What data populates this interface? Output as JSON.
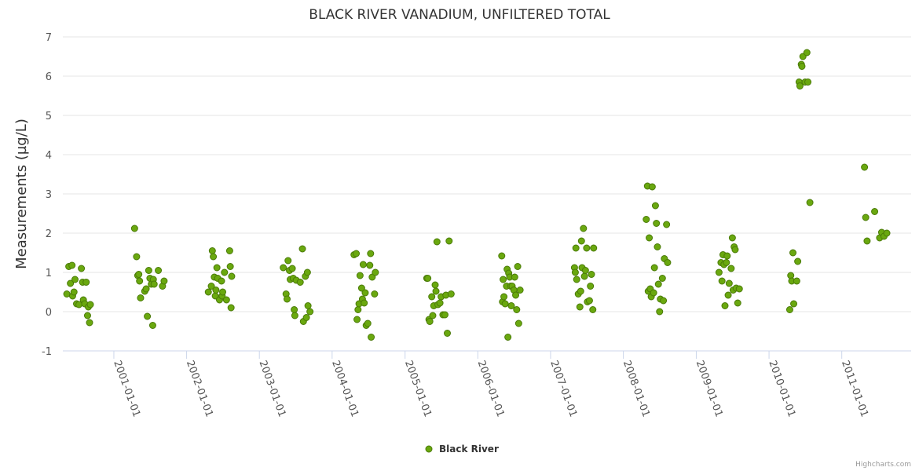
{
  "chart_data": {
    "type": "scatter",
    "title": "BLACK RIVER VANADIUM, UNFILTERED TOTAL",
    "xlabel": "",
    "ylabel": "Measurements (µg/L)",
    "x_type": "date",
    "xlim": [
      "2000-04-20",
      "2011-12-15"
    ],
    "ylim": [
      -1,
      7
    ],
    "y_ticks": [
      -1,
      0,
      1,
      2,
      3,
      4,
      5,
      6,
      7
    ],
    "x_ticks": [
      "2001-01-01",
      "2002-01-01",
      "2003-01-01",
      "2004-01-01",
      "2005-01-01",
      "2006-01-01",
      "2007-01-01",
      "2008-01-01",
      "2009-01-01",
      "2010-01-01",
      "2011-01-01"
    ],
    "grid": true,
    "legend": {
      "position": "bottom-center"
    },
    "credit": "Highcharts.com",
    "series": [
      {
        "name": "Black River",
        "color": "#6aa80f",
        "points": [
          [
            "2000-05-10",
            0.45
          ],
          [
            "2000-05-20",
            1.15
          ],
          [
            "2000-05-28",
            0.72
          ],
          [
            "2000-06-05",
            1.18
          ],
          [
            "2000-06-08",
            0.4
          ],
          [
            "2000-06-15",
            0.5
          ],
          [
            "2000-06-20",
            0.82
          ],
          [
            "2000-06-28",
            0.2
          ],
          [
            "2000-07-10",
            0.18
          ],
          [
            "2000-07-22",
            1.1
          ],
          [
            "2000-07-28",
            0.75
          ],
          [
            "2000-08-01",
            0.3
          ],
          [
            "2000-08-08",
            0.2
          ],
          [
            "2000-08-15",
            0.75
          ],
          [
            "2000-08-22",
            -0.1
          ],
          [
            "2000-08-26",
            0.12
          ],
          [
            "2000-09-01",
            -0.28
          ],
          [
            "2000-09-05",
            0.18
          ],
          [
            "2001-04-15",
            2.12
          ],
          [
            "2001-04-25",
            1.4
          ],
          [
            "2001-05-01",
            0.92
          ],
          [
            "2001-05-06",
            0.95
          ],
          [
            "2001-05-10",
            0.78
          ],
          [
            "2001-05-15",
            0.35
          ],
          [
            "2001-06-05",
            0.52
          ],
          [
            "2001-06-12",
            0.58
          ],
          [
            "2001-06-18",
            -0.12
          ],
          [
            "2001-06-25",
            1.05
          ],
          [
            "2001-07-01",
            0.85
          ],
          [
            "2001-07-08",
            0.7
          ],
          [
            "2001-07-15",
            -0.35
          ],
          [
            "2001-07-18",
            0.82
          ],
          [
            "2001-07-22",
            0.7
          ],
          [
            "2001-08-12",
            1.05
          ],
          [
            "2001-09-02",
            0.65
          ],
          [
            "2001-09-10",
            0.78
          ],
          [
            "2002-04-20",
            0.5
          ],
          [
            "2002-05-05",
            0.65
          ],
          [
            "2002-05-10",
            1.55
          ],
          [
            "2002-05-15",
            1.4
          ],
          [
            "2002-05-20",
            0.88
          ],
          [
            "2002-05-25",
            0.4
          ],
          [
            "2002-05-28",
            0.55
          ],
          [
            "2002-06-02",
            1.12
          ],
          [
            "2002-06-06",
            0.85
          ],
          [
            "2002-06-15",
            0.3
          ],
          [
            "2002-06-25",
            0.78
          ],
          [
            "2002-06-28",
            0.4
          ],
          [
            "2002-07-01",
            0.5
          ],
          [
            "2002-07-10",
            1.0
          ],
          [
            "2002-07-20",
            0.3
          ],
          [
            "2002-08-05",
            1.55
          ],
          [
            "2002-08-08",
            1.15
          ],
          [
            "2002-08-12",
            0.1
          ],
          [
            "2002-08-15",
            0.9
          ],
          [
            "2003-05-01",
            1.12
          ],
          [
            "2003-05-15",
            0.45
          ],
          [
            "2003-05-20",
            0.32
          ],
          [
            "2003-05-25",
            1.3
          ],
          [
            "2003-06-01",
            1.05
          ],
          [
            "2003-06-05",
            0.82
          ],
          [
            "2003-06-15",
            1.1
          ],
          [
            "2003-06-20",
            0.85
          ],
          [
            "2003-06-25",
            0.05
          ],
          [
            "2003-06-28",
            -0.1
          ],
          [
            "2003-07-05",
            0.8
          ],
          [
            "2003-07-25",
            0.75
          ],
          [
            "2003-08-05",
            1.6
          ],
          [
            "2003-08-10",
            -0.25
          ],
          [
            "2003-08-20",
            0.9
          ],
          [
            "2003-08-25",
            -0.15
          ],
          [
            "2003-08-30",
            1.0
          ],
          [
            "2003-09-02",
            0.15
          ],
          [
            "2003-09-12",
            0.0
          ],
          [
            "2004-04-20",
            1.45
          ],
          [
            "2004-05-01",
            1.48
          ],
          [
            "2004-05-05",
            -0.2
          ],
          [
            "2004-05-10",
            0.05
          ],
          [
            "2004-05-15",
            0.2
          ],
          [
            "2004-05-20",
            0.92
          ],
          [
            "2004-05-28",
            0.6
          ],
          [
            "2004-06-01",
            0.32
          ],
          [
            "2004-06-05",
            1.2
          ],
          [
            "2004-06-10",
            0.22
          ],
          [
            "2004-06-15",
            0.48
          ],
          [
            "2004-06-20",
            -0.35
          ],
          [
            "2004-06-28",
            -0.3
          ],
          [
            "2004-07-08",
            1.18
          ],
          [
            "2004-07-12",
            1.48
          ],
          [
            "2004-07-15",
            -0.65
          ],
          [
            "2004-07-20",
            0.88
          ],
          [
            "2004-08-01",
            0.45
          ],
          [
            "2004-08-05",
            1.0
          ],
          [
            "2005-04-20",
            0.85
          ],
          [
            "2005-04-25",
            0.85
          ],
          [
            "2005-05-01",
            -0.2
          ],
          [
            "2005-05-05",
            -0.25
          ],
          [
            "2005-05-15",
            0.38
          ],
          [
            "2005-05-20",
            -0.1
          ],
          [
            "2005-05-25",
            0.15
          ],
          [
            "2005-06-01",
            0.68
          ],
          [
            "2005-06-05",
            0.52
          ],
          [
            "2005-06-10",
            1.78
          ],
          [
            "2005-06-15",
            0.18
          ],
          [
            "2005-06-25",
            0.22
          ],
          [
            "2005-07-01",
            0.38
          ],
          [
            "2005-07-10",
            -0.08
          ],
          [
            "2005-07-20",
            -0.08
          ],
          [
            "2005-07-25",
            0.42
          ],
          [
            "2005-08-01",
            -0.55
          ],
          [
            "2005-08-10",
            1.8
          ],
          [
            "2005-08-20",
            0.45
          ],
          [
            "2006-05-01",
            1.42
          ],
          [
            "2006-05-05",
            0.25
          ],
          [
            "2006-05-08",
            0.82
          ],
          [
            "2006-05-12",
            0.38
          ],
          [
            "2006-05-18",
            0.2
          ],
          [
            "2006-05-25",
            0.65
          ],
          [
            "2006-05-28",
            1.08
          ],
          [
            "2006-06-01",
            -0.65
          ],
          [
            "2006-06-05",
            0.98
          ],
          [
            "2006-06-10",
            0.88
          ],
          [
            "2006-06-15",
            0.65
          ],
          [
            "2006-06-18",
            0.15
          ],
          [
            "2006-06-22",
            0.65
          ],
          [
            "2006-07-01",
            0.55
          ],
          [
            "2006-07-05",
            0.88
          ],
          [
            "2006-07-10",
            0.42
          ],
          [
            "2006-07-15",
            0.05
          ],
          [
            "2006-07-20",
            1.15
          ],
          [
            "2006-07-25",
            -0.3
          ],
          [
            "2006-08-01",
            0.55
          ],
          [
            "2007-05-01",
            1.12
          ],
          [
            "2007-05-05",
            1.0
          ],
          [
            "2007-05-08",
            1.62
          ],
          [
            "2007-05-12",
            0.82
          ],
          [
            "2007-05-20",
            0.45
          ],
          [
            "2007-05-28",
            0.12
          ],
          [
            "2007-06-01",
            0.52
          ],
          [
            "2007-06-05",
            1.8
          ],
          [
            "2007-06-08",
            1.12
          ],
          [
            "2007-06-15",
            2.12
          ],
          [
            "2007-06-20",
            0.9
          ],
          [
            "2007-06-25",
            1.05
          ],
          [
            "2007-07-01",
            1.62
          ],
          [
            "2007-07-05",
            0.25
          ],
          [
            "2007-07-15",
            0.28
          ],
          [
            "2007-07-20",
            0.65
          ],
          [
            "2007-07-25",
            0.95
          ],
          [
            "2007-08-01",
            0.05
          ],
          [
            "2007-08-05",
            1.62
          ],
          [
            "2008-04-25",
            2.35
          ],
          [
            "2008-05-01",
            3.2
          ],
          [
            "2008-05-05",
            0.52
          ],
          [
            "2008-05-10",
            1.88
          ],
          [
            "2008-05-15",
            0.58
          ],
          [
            "2008-05-20",
            0.38
          ],
          [
            "2008-05-25",
            3.18
          ],
          [
            "2008-06-01",
            0.48
          ],
          [
            "2008-06-05",
            1.12
          ],
          [
            "2008-06-10",
            2.7
          ],
          [
            "2008-06-15",
            2.25
          ],
          [
            "2008-06-20",
            1.65
          ],
          [
            "2008-06-25",
            0.7
          ],
          [
            "2008-07-01",
            0.0
          ],
          [
            "2008-07-05",
            0.32
          ],
          [
            "2008-07-15",
            0.85
          ],
          [
            "2008-07-20",
            0.28
          ],
          [
            "2008-07-25",
            1.35
          ],
          [
            "2008-08-05",
            2.22
          ],
          [
            "2008-08-10",
            1.25
          ],
          [
            "2009-04-25",
            1.0
          ],
          [
            "2009-05-05",
            1.25
          ],
          [
            "2009-05-10",
            0.78
          ],
          [
            "2009-05-15",
            1.45
          ],
          [
            "2009-05-20",
            1.2
          ],
          [
            "2009-05-25",
            0.15
          ],
          [
            "2009-06-01",
            1.25
          ],
          [
            "2009-06-05",
            1.42
          ],
          [
            "2009-06-10",
            0.42
          ],
          [
            "2009-06-15",
            0.72
          ],
          [
            "2009-06-25",
            1.1
          ],
          [
            "2009-07-01",
            1.88
          ],
          [
            "2009-07-05",
            0.55
          ],
          [
            "2009-07-10",
            1.65
          ],
          [
            "2009-07-15",
            1.58
          ],
          [
            "2009-07-20",
            0.6
          ],
          [
            "2009-07-28",
            0.22
          ],
          [
            "2009-08-05",
            0.58
          ],
          [
            "2010-04-15",
            0.05
          ],
          [
            "2010-04-20",
            0.92
          ],
          [
            "2010-04-25",
            0.78
          ],
          [
            "2010-05-01",
            1.5
          ],
          [
            "2010-05-05",
            0.2
          ],
          [
            "2010-05-20",
            0.78
          ],
          [
            "2010-05-25",
            1.28
          ],
          [
            "2010-06-01",
            5.85
          ],
          [
            "2010-06-05",
            5.75
          ],
          [
            "2010-06-12",
            6.3
          ],
          [
            "2010-06-15",
            6.25
          ],
          [
            "2010-06-20",
            6.5
          ],
          [
            "2010-07-01",
            5.85
          ],
          [
            "2010-07-10",
            6.6
          ],
          [
            "2010-07-15",
            5.85
          ],
          [
            "2010-07-25",
            2.78
          ],
          [
            "2011-04-25",
            3.68
          ],
          [
            "2011-05-01",
            2.4
          ],
          [
            "2011-05-08",
            1.8
          ],
          [
            "2011-06-15",
            2.55
          ],
          [
            "2011-07-10",
            1.88
          ],
          [
            "2011-07-20",
            2.02
          ],
          [
            "2011-08-01",
            1.92
          ],
          [
            "2011-08-15",
            2.0
          ]
        ]
      }
    ]
  }
}
